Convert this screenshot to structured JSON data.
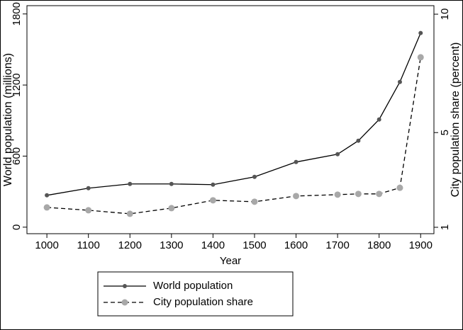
{
  "chart_data": {
    "type": "line",
    "x_label": "Year",
    "y_label": "World population (millions)",
    "y2_label": "City population share (percent)",
    "x": [
      1000,
      1100,
      1200,
      1300,
      1400,
      1500,
      1600,
      1700,
      1750,
      1800,
      1850,
      1900
    ],
    "xlim": [
      952,
      1932
    ],
    "xticks": [
      1000,
      1100,
      1200,
      1300,
      1400,
      1500,
      1600,
      1700,
      1800,
      1900
    ],
    "ylim": [
      -55,
      1870
    ],
    "yticks": [
      0,
      600,
      1200,
      1800
    ],
    "y2lim": [
      0.73,
      10.36
    ],
    "y2ticks": [
      1,
      5,
      10
    ],
    "series": [
      {
        "name": "World population",
        "color": "#000000",
        "marker_color": "#555555",
        "dashed": false,
        "values": [
          269,
          329,
          365,
          365,
          359,
          425,
          550,
          616,
          730,
          909,
          1226,
          1639
        ]
      },
      {
        "name": "City population share",
        "color": "#000000",
        "marker_color": "#a8a8a8",
        "dashed": true,
        "axis": "y2",
        "values": [
          1.84,
          1.72,
          1.57,
          1.81,
          2.14,
          2.08,
          2.32,
          2.38,
          2.41,
          2.41,
          2.67,
          8.18
        ]
      }
    ]
  }
}
